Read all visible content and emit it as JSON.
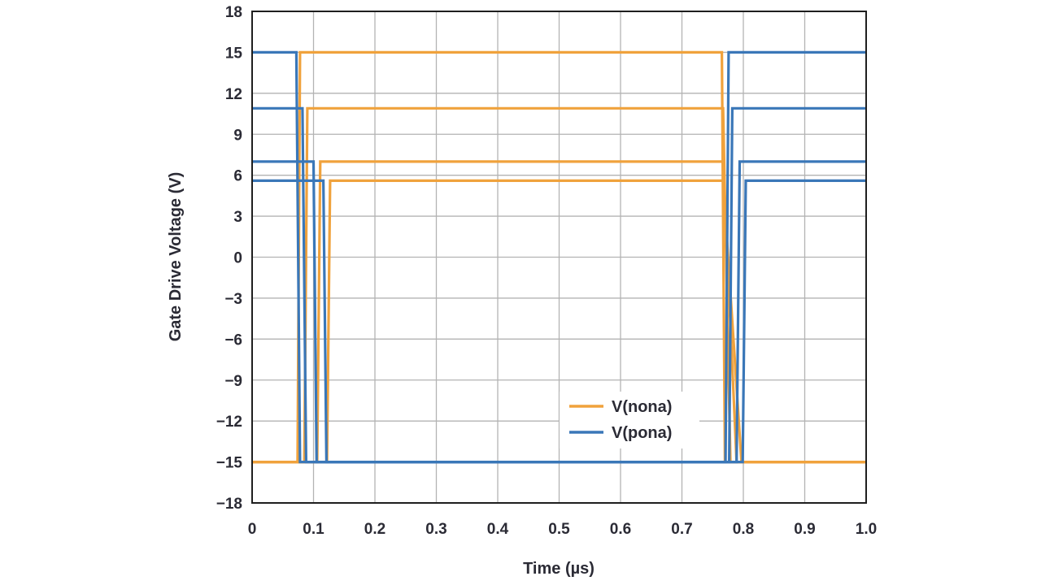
{
  "chart_data": {
    "type": "line",
    "title": "",
    "xlabel": "Time (µs)",
    "ylabel": "Gate Drive Voltage (V)",
    "xlim": [
      0,
      1.0
    ],
    "ylim": [
      -18,
      18
    ],
    "xticks": [
      0,
      0.1,
      0.2,
      0.3,
      0.4,
      0.5,
      0.6,
      0.7,
      0.8,
      0.9,
      1.0
    ],
    "xtick_labels": [
      "0",
      "0.1",
      "0.2",
      "0.3",
      "0.4",
      "0.5",
      "0.6",
      "0.7",
      "0.8",
      "0.9",
      "1.0"
    ],
    "yticks": [
      18,
      15,
      12,
      9,
      6,
      3,
      0,
      -3,
      -6,
      -9,
      -12,
      -15,
      -18
    ],
    "ytick_labels": [
      "18",
      "15",
      "12",
      "9",
      "6",
      "3",
      "0",
      "−3",
      "−6",
      "−9",
      "−12",
      "−15",
      "−18"
    ],
    "grid": true,
    "legend": "lower-right",
    "series": [
      {
        "name": "V(nona)",
        "color": "#f0a23c",
        "traces": [
          {
            "x": [
              0,
              0.074,
              0.078,
              0.765,
              0.77,
              1.0
            ],
            "y": [
              -15,
              -15,
              15,
              15,
              -15,
              -15
            ]
          },
          {
            "x": [
              0,
              0.085,
              0.09,
              0.767,
              0.779,
              1.0
            ],
            "y": [
              -15,
              -15,
              10.9,
              10.9,
              -15,
              -15
            ]
          },
          {
            "x": [
              0,
              0.106,
              0.111,
              0.767,
              0.789,
              1.0
            ],
            "y": [
              -15,
              -15,
              7,
              7,
              -15,
              -15
            ]
          },
          {
            "x": [
              0,
              0.122,
              0.127,
              0.767,
              0.797,
              1.0
            ],
            "y": [
              -15,
              -15,
              5.6,
              5.6,
              -15,
              -15
            ]
          }
        ]
      },
      {
        "name": "V(pona)",
        "color": "#3a77b8",
        "traces": [
          {
            "x": [
              0,
              0.072,
              0.078,
              0.771,
              0.776,
              1.0
            ],
            "y": [
              15,
              15,
              -15,
              -15,
              15,
              15
            ]
          },
          {
            "x": [
              0,
              0.082,
              0.088,
              0.777,
              0.782,
              1.0
            ],
            "y": [
              10.9,
              10.9,
              -15,
              -15,
              10.9,
              10.9
            ]
          },
          {
            "x": [
              0,
              0.1,
              0.105,
              0.789,
              0.794,
              1.0
            ],
            "y": [
              7,
              7,
              -15,
              -15,
              7,
              7
            ]
          },
          {
            "x": [
              0,
              0.116,
              0.121,
              0.799,
              0.804,
              1.0
            ],
            "y": [
              5.6,
              5.6,
              -15,
              -15,
              5.6,
              5.6
            ]
          }
        ]
      }
    ]
  }
}
